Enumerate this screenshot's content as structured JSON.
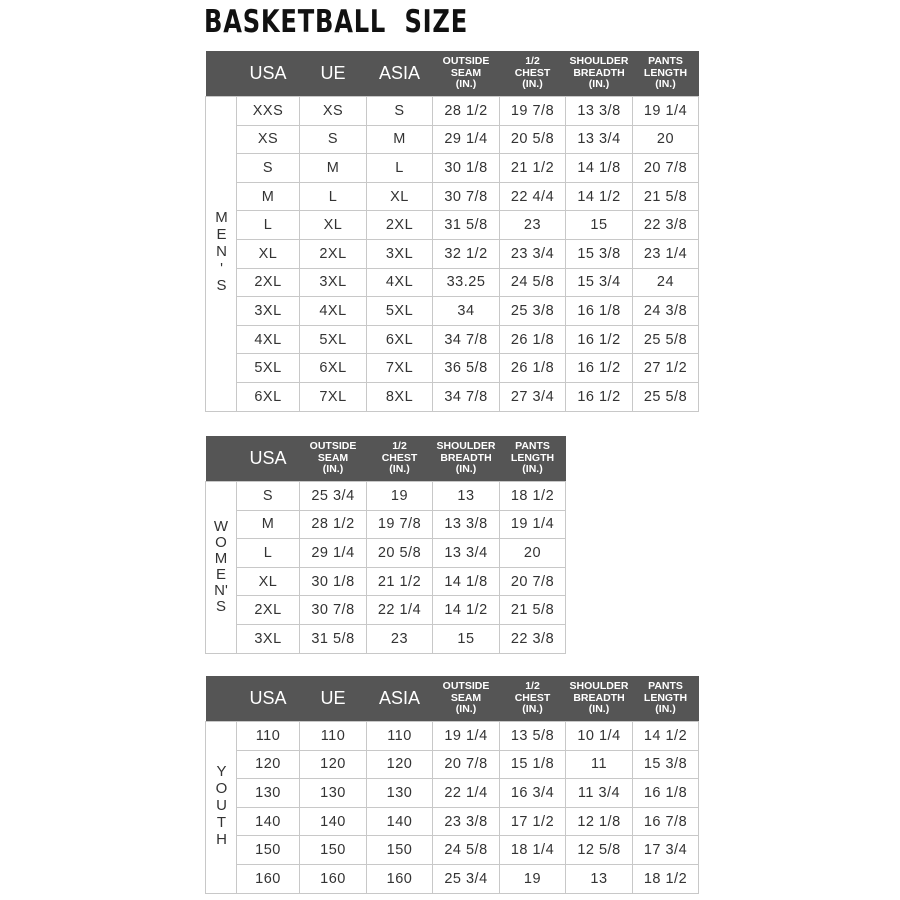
{
  "title": "BASKETBALL  SIZE",
  "tables": [
    {
      "side_label": "MEN'S",
      "side_letters": [
        "M",
        "E",
        "N'",
        "S"
      ],
      "headers": [
        [
          "USA"
        ],
        [
          "UE"
        ],
        [
          "ASIA"
        ],
        [
          "OUTSIDE",
          "SEAM",
          "(IN.)"
        ],
        [
          "1/2",
          "CHEST",
          "(IN.)"
        ],
        [
          "SHOULDER",
          "BREADTH",
          "(IN.)"
        ],
        [
          "PANTS",
          "LENGTH",
          "(IN.)"
        ]
      ],
      "rows": [
        [
          "XXS",
          "XS",
          "S",
          "28 1/2",
          "19 7/8",
          "13 3/8",
          "19 1/4"
        ],
        [
          "XS",
          "S",
          "M",
          "29 1/4",
          "20 5/8",
          "13 3/4",
          "20"
        ],
        [
          "S",
          "M",
          "L",
          "30 1/8",
          "21 1/2",
          "14 1/8",
          "20 7/8"
        ],
        [
          "M",
          "L",
          "XL",
          "30 7/8",
          "22 4/4",
          "14 1/2",
          "21 5/8"
        ],
        [
          "L",
          "XL",
          "2XL",
          "31 5/8",
          "23",
          "15",
          "22 3/8"
        ],
        [
          "XL",
          "2XL",
          "3XL",
          "32 1/2",
          "23 3/4",
          "15 3/8",
          "23 1/4"
        ],
        [
          "2XL",
          "3XL",
          "4XL",
          "33.25",
          "24 5/8",
          "15 3/4",
          "24"
        ],
        [
          "3XL",
          "4XL",
          "5XL",
          "34",
          "25 3/8",
          "16 1/8",
          "24 3/8"
        ],
        [
          "4XL",
          "5XL",
          "6XL",
          "34 7/8",
          "26 1/8",
          "16 1/2",
          "25 5/8"
        ],
        [
          "5XL",
          "6XL",
          "7XL",
          "36 5/8",
          "26 1/8",
          "16 1/2",
          "27 1/2"
        ],
        [
          "6XL",
          "7XL",
          "8XL",
          "34 7/8",
          "27 3/4",
          "16 1/2",
          "25 5/8"
        ]
      ]
    },
    {
      "side_label": "WOMEN'S",
      "side_letters": [
        "W",
        "O",
        "M",
        "E",
        "N'",
        "S"
      ],
      "headers": [
        [
          "USA"
        ],
        [
          "OUTSIDE",
          "SEAM",
          "(IN.)"
        ],
        [
          "1/2",
          "CHEST",
          "(IN.)"
        ],
        [
          "SHOULDER",
          "BREADTH",
          "(IN.)"
        ],
        [
          "PANTS",
          "LENGTH",
          "(IN.)"
        ]
      ],
      "rows": [
        [
          "S",
          "25 3/4",
          "19",
          "13",
          "18 1/2"
        ],
        [
          "M",
          "28 1/2",
          "19 7/8",
          "13 3/8",
          "19 1/4"
        ],
        [
          "L",
          "29 1/4",
          "20 5/8",
          "13 3/4",
          "20"
        ],
        [
          "XL",
          "30 1/8",
          "21 1/2",
          "14 1/8",
          "20 7/8"
        ],
        [
          "2XL",
          "30 7/8",
          "22 1/4",
          "14 1/2",
          "21 5/8"
        ],
        [
          "3XL",
          "31 5/8",
          "23",
          "15",
          "22 3/8"
        ]
      ]
    },
    {
      "side_label": "YOUTH",
      "side_letters": [
        "Y",
        "O",
        "U",
        "T",
        "H"
      ],
      "headers": [
        [
          "USA"
        ],
        [
          "UE"
        ],
        [
          "ASIA"
        ],
        [
          "OUTSIDE",
          "SEAM",
          "(IN.)"
        ],
        [
          "1/2",
          "CHEST",
          "(IN.)"
        ],
        [
          "SHOULDER",
          "BREADTH",
          "(IN.)"
        ],
        [
          "PANTS",
          "LENGTH",
          "(IN.)"
        ]
      ],
      "rows": [
        [
          "110",
          "110",
          "110",
          "19 1/4",
          "13 5/8",
          "10 1/4",
          "14 1/2"
        ],
        [
          "120",
          "120",
          "120",
          "20 7/8",
          "15 1/8",
          "11",
          "15 3/8"
        ],
        [
          "130",
          "130",
          "130",
          "22 1/4",
          "16 3/4",
          "11 3/4",
          "16 1/8"
        ],
        [
          "140",
          "140",
          "140",
          "23 3/8",
          "17 1/2",
          "12 1/8",
          "16 7/8"
        ],
        [
          "150",
          "150",
          "150",
          "24 5/8",
          "18 1/4",
          "12 5/8",
          "17 3/4"
        ],
        [
          "160",
          "160",
          "160",
          "25 3/4",
          "19",
          "13",
          "18 1/2"
        ]
      ]
    }
  ],
  "colors": {
    "header_bg": "#555555",
    "header_text": "#ffffff",
    "border": "#c8c8c8"
  }
}
